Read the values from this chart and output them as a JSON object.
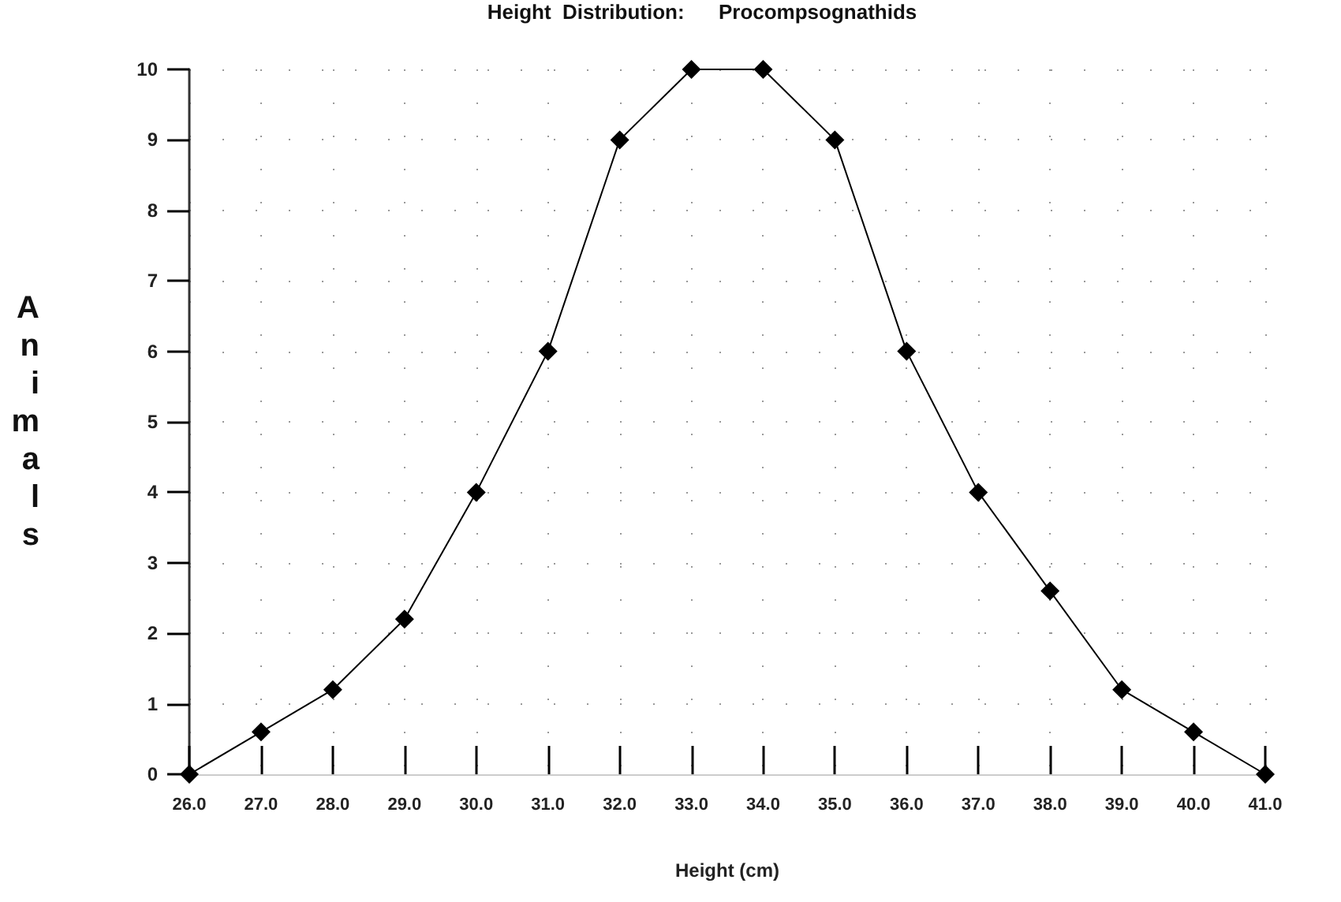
{
  "chart_data": {
    "type": "line",
    "title": "Height  Distribution:      Procompsognathids",
    "xlabel": "Height (cm)",
    "ylabel": "Animals",
    "categories": [
      "26.0",
      "27.0",
      "28.0",
      "29.0",
      "30.0",
      "31.0",
      "32.0",
      "33.0",
      "34.0",
      "35.0",
      "36.0",
      "37.0",
      "38.0",
      "39.0",
      "40.0",
      "41.0"
    ],
    "series": [
      {
        "color": "#000000",
        "values": [
          0,
          0.6,
          1.2,
          2.2,
          4,
          6,
          9,
          10,
          10,
          9,
          6,
          4,
          2.6,
          1.2,
          0.6,
          0
        ]
      }
    ],
    "ylim": [
      0,
      10
    ],
    "yticks": [
      0,
      1,
      2,
      3,
      4,
      5,
      6,
      7,
      8,
      9,
      10
    ],
    "grid": true,
    "marker": "diamond",
    "line_style": "solid"
  }
}
